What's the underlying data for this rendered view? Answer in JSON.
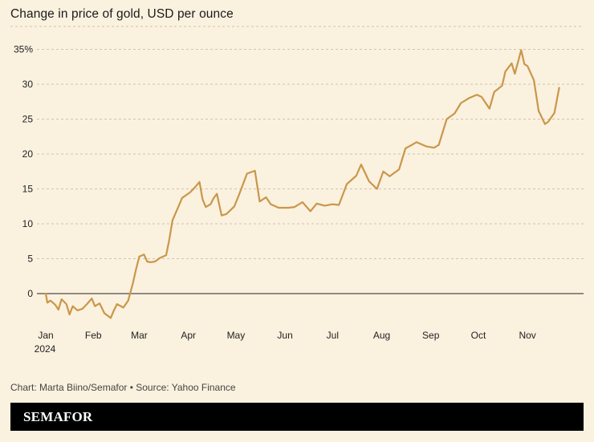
{
  "chart_data": {
    "type": "line",
    "title": "Change in price of gold, USD per ounce",
    "xlabel": "",
    "ylabel": "",
    "y_ticks": [
      "0",
      "5",
      "10",
      "15",
      "20",
      "25",
      "30",
      "35%"
    ],
    "y_tick_values": [
      0,
      5,
      10,
      15,
      20,
      25,
      30,
      35
    ],
    "ylim": [
      -4,
      36
    ],
    "x_tick_labels": [
      "Jan",
      "Feb",
      "Mar",
      "Apr",
      "May",
      "Jun",
      "Jul",
      "Aug",
      "Sep",
      "Oct",
      "Nov"
    ],
    "x_year_label": "2024",
    "grid": true,
    "line_color": "#c9974a",
    "series": [
      {
        "x": [
          "2024-01-02",
          "2024-01-03",
          "2024-01-05",
          "2024-01-08",
          "2024-01-10",
          "2024-01-12",
          "2024-01-15",
          "2024-01-17",
          "2024-01-19",
          "2024-01-22",
          "2024-01-25",
          "2024-01-28",
          "2024-01-31",
          "2024-02-02",
          "2024-02-05",
          "2024-02-08",
          "2024-02-12",
          "2024-02-14",
          "2024-02-16",
          "2024-02-20",
          "2024-02-23",
          "2024-02-26",
          "2024-02-28",
          "2024-03-01",
          "2024-03-04",
          "2024-03-06",
          "2024-03-08",
          "2024-03-11",
          "2024-03-14",
          "2024-03-18",
          "2024-03-20",
          "2024-03-22",
          "2024-03-26",
          "2024-03-28",
          "2024-04-02",
          "2024-04-05",
          "2024-04-08",
          "2024-04-10",
          "2024-04-12",
          "2024-04-15",
          "2024-04-17",
          "2024-04-19",
          "2024-04-22",
          "2024-04-25",
          "2024-04-30",
          "2024-05-03",
          "2024-05-08",
          "2024-05-13",
          "2024-05-16",
          "2024-05-20",
          "2024-05-23",
          "2024-05-28",
          "2024-06-03",
          "2024-06-07",
          "2024-06-12",
          "2024-06-17",
          "2024-06-21",
          "2024-06-26",
          "2024-07-01",
          "2024-07-05",
          "2024-07-10",
          "2024-07-16",
          "2024-07-19",
          "2024-07-24",
          "2024-07-29",
          "2024-08-02",
          "2024-08-06",
          "2024-08-12",
          "2024-08-16",
          "2024-08-20",
          "2024-08-23",
          "2024-08-29",
          "2024-09-03",
          "2024-09-06",
          "2024-09-11",
          "2024-09-16",
          "2024-09-20",
          "2024-09-25",
          "2024-09-30",
          "2024-10-03",
          "2024-10-08",
          "2024-10-11",
          "2024-10-16",
          "2024-10-18",
          "2024-10-22",
          "2024-10-24",
          "2024-10-28",
          "2024-10-30",
          "2024-11-01",
          "2024-11-05",
          "2024-11-08",
          "2024-11-12",
          "2024-11-14",
          "2024-11-18",
          "2024-11-21"
        ],
        "values": [
          0,
          -1.3,
          -1.0,
          -1.6,
          -2.3,
          -0.8,
          -1.5,
          -3.0,
          -1.8,
          -2.4,
          -2.2,
          -1.5,
          -0.7,
          -1.8,
          -1.4,
          -2.8,
          -3.5,
          -2.4,
          -1.5,
          -2.0,
          -1.0,
          1.5,
          3.5,
          5.3,
          5.6,
          4.6,
          4.5,
          4.6,
          5.1,
          5.5,
          7.8,
          10.5,
          12.6,
          13.7,
          14.5,
          15.2,
          16.0,
          13.5,
          12.4,
          12.8,
          13.7,
          14.3,
          11.2,
          11.4,
          12.5,
          14.2,
          17.2,
          17.6,
          13.2,
          13.8,
          12.8,
          12.3,
          12.3,
          12.4,
          13.1,
          11.8,
          12.9,
          12.6,
          12.8,
          12.7,
          15.7,
          16.9,
          18.5,
          16.1,
          15.0,
          17.5,
          16.8,
          17.8,
          20.8,
          21.3,
          21.7,
          21.1,
          20.9,
          21.3,
          25.0,
          25.8,
          27.3,
          28.0,
          28.5,
          28.2,
          26.5,
          28.9,
          29.8,
          31.8,
          33.0,
          31.5,
          34.9,
          32.9,
          32.6,
          30.6,
          26.2,
          24.3,
          24.6,
          25.9,
          29.5
        ]
      }
    ]
  },
  "credit": "Chart: Marta Biino/Semafor • Source: Yahoo Finance",
  "brand": "SEMAFOR"
}
